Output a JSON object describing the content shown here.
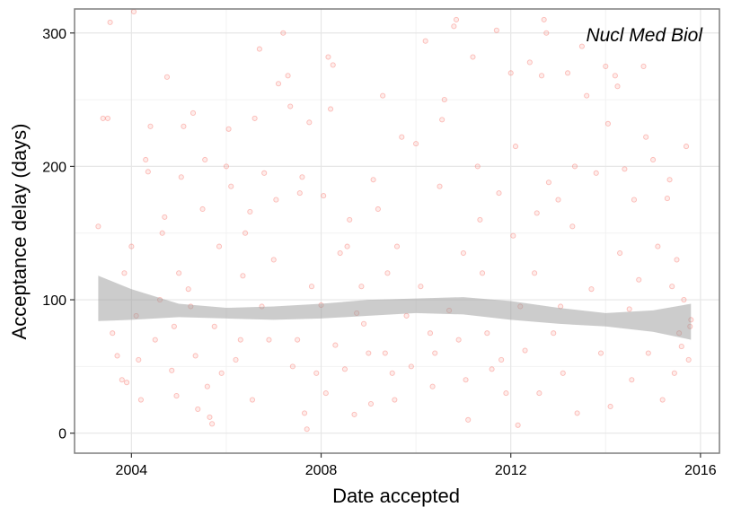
{
  "chart_data": {
    "type": "scatter",
    "title": "",
    "xlabel": "Date accepted",
    "ylabel": "Acceptance delay (days)",
    "annotation": "Nucl Med Biol",
    "xlim": [
      2002.8,
      2016.4
    ],
    "ylim": [
      -15,
      318
    ],
    "x_ticks": [
      2004,
      2008,
      2012,
      2016
    ],
    "x_tick_labels": [
      "2004",
      "2008",
      "2012",
      "2016"
    ],
    "y_ticks": [
      0,
      100,
      200,
      300
    ],
    "y_tick_labels": [
      "0",
      "100",
      "200",
      "300"
    ],
    "x_minor_gridlines": [
      2002,
      2006,
      2010,
      2014
    ],
    "y_minor_gridlines": [
      50,
      150,
      250
    ],
    "grid": true,
    "point_color": "#f8766d",
    "point_opacity": 0.25,
    "band_color": "#999999",
    "points": [
      [
        2003.3,
        155
      ],
      [
        2003.4,
        236
      ],
      [
        2003.5,
        236
      ],
      [
        2003.55,
        308
      ],
      [
        2003.6,
        75
      ],
      [
        2003.7,
        58
      ],
      [
        2003.8,
        40
      ],
      [
        2003.85,
        120
      ],
      [
        2003.9,
        38
      ],
      [
        2004.0,
        140
      ],
      [
        2004.05,
        316
      ],
      [
        2004.1,
        88
      ],
      [
        2004.15,
        55
      ],
      [
        2004.2,
        25
      ],
      [
        2004.3,
        205
      ],
      [
        2004.35,
        196
      ],
      [
        2004.4,
        230
      ],
      [
        2004.5,
        70
      ],
      [
        2004.6,
        100
      ],
      [
        2004.65,
        150
      ],
      [
        2004.7,
        162
      ],
      [
        2004.75,
        267
      ],
      [
        2004.85,
        47
      ],
      [
        2004.9,
        80
      ],
      [
        2004.95,
        28
      ],
      [
        2005.0,
        120
      ],
      [
        2005.05,
        192
      ],
      [
        2005.1,
        230
      ],
      [
        2005.2,
        108
      ],
      [
        2005.25,
        95
      ],
      [
        2005.3,
        240
      ],
      [
        2005.35,
        58
      ],
      [
        2005.4,
        18
      ],
      [
        2005.5,
        168
      ],
      [
        2005.55,
        205
      ],
      [
        2005.6,
        35
      ],
      [
        2005.65,
        12
      ],
      [
        2005.7,
        7
      ],
      [
        2005.75,
        80
      ],
      [
        2005.85,
        140
      ],
      [
        2005.9,
        45
      ],
      [
        2006.0,
        200
      ],
      [
        2006.05,
        228
      ],
      [
        2006.1,
        185
      ],
      [
        2006.2,
        55
      ],
      [
        2006.3,
        70
      ],
      [
        2006.35,
        118
      ],
      [
        2006.4,
        150
      ],
      [
        2006.5,
        166
      ],
      [
        2006.55,
        25
      ],
      [
        2006.6,
        236
      ],
      [
        2006.7,
        288
      ],
      [
        2006.75,
        95
      ],
      [
        2006.8,
        195
      ],
      [
        2006.9,
        70
      ],
      [
        2007.0,
        130
      ],
      [
        2007.05,
        175
      ],
      [
        2007.1,
        262
      ],
      [
        2007.2,
        300
      ],
      [
        2007.3,
        268
      ],
      [
        2007.35,
        245
      ],
      [
        2007.4,
        50
      ],
      [
        2007.5,
        70
      ],
      [
        2007.55,
        180
      ],
      [
        2007.6,
        192
      ],
      [
        2007.65,
        15
      ],
      [
        2007.7,
        3
      ],
      [
        2007.75,
        233
      ],
      [
        2007.8,
        110
      ],
      [
        2007.9,
        45
      ],
      [
        2008.0,
        96
      ],
      [
        2008.05,
        178
      ],
      [
        2008.1,
        30
      ],
      [
        2008.15,
        282
      ],
      [
        2008.2,
        243
      ],
      [
        2008.25,
        276
      ],
      [
        2008.3,
        66
      ],
      [
        2008.4,
        135
      ],
      [
        2008.5,
        48
      ],
      [
        2008.55,
        140
      ],
      [
        2008.6,
        160
      ],
      [
        2008.7,
        14
      ],
      [
        2008.75,
        90
      ],
      [
        2008.85,
        110
      ],
      [
        2008.9,
        82
      ],
      [
        2009.0,
        60
      ],
      [
        2009.05,
        22
      ],
      [
        2009.1,
        190
      ],
      [
        2009.2,
        168
      ],
      [
        2009.3,
        253
      ],
      [
        2009.35,
        60
      ],
      [
        2009.4,
        120
      ],
      [
        2009.5,
        45
      ],
      [
        2009.55,
        25
      ],
      [
        2009.6,
        140
      ],
      [
        2009.7,
        222
      ],
      [
        2009.8,
        88
      ],
      [
        2009.9,
        50
      ],
      [
        2010.0,
        217
      ],
      [
        2010.1,
        110
      ],
      [
        2010.2,
        294
      ],
      [
        2010.3,
        75
      ],
      [
        2010.35,
        35
      ],
      [
        2010.4,
        60
      ],
      [
        2010.5,
        185
      ],
      [
        2010.55,
        235
      ],
      [
        2010.6,
        250
      ],
      [
        2010.7,
        92
      ],
      [
        2010.8,
        305
      ],
      [
        2010.85,
        310
      ],
      [
        2010.9,
        70
      ],
      [
        2011.0,
        135
      ],
      [
        2011.05,
        40
      ],
      [
        2011.1,
        10
      ],
      [
        2011.2,
        282
      ],
      [
        2011.3,
        200
      ],
      [
        2011.35,
        160
      ],
      [
        2011.4,
        120
      ],
      [
        2011.5,
        75
      ],
      [
        2011.6,
        48
      ],
      [
        2011.7,
        302
      ],
      [
        2011.75,
        180
      ],
      [
        2011.8,
        55
      ],
      [
        2011.9,
        30
      ],
      [
        2012.0,
        270
      ],
      [
        2012.05,
        148
      ],
      [
        2012.1,
        215
      ],
      [
        2012.15,
        6
      ],
      [
        2012.2,
        95
      ],
      [
        2012.3,
        62
      ],
      [
        2012.4,
        278
      ],
      [
        2012.5,
        120
      ],
      [
        2012.55,
        165
      ],
      [
        2012.6,
        30
      ],
      [
        2012.65,
        268
      ],
      [
        2012.7,
        310
      ],
      [
        2012.75,
        300
      ],
      [
        2012.8,
        188
      ],
      [
        2012.9,
        75
      ],
      [
        2013.0,
        175
      ],
      [
        2013.05,
        95
      ],
      [
        2013.1,
        45
      ],
      [
        2013.2,
        270
      ],
      [
        2013.3,
        155
      ],
      [
        2013.35,
        200
      ],
      [
        2013.4,
        15
      ],
      [
        2013.5,
        290
      ],
      [
        2013.6,
        253
      ],
      [
        2013.7,
        108
      ],
      [
        2013.8,
        195
      ],
      [
        2013.9,
        60
      ],
      [
        2014.0,
        275
      ],
      [
        2014.05,
        232
      ],
      [
        2014.1,
        20
      ],
      [
        2014.2,
        268
      ],
      [
        2014.25,
        260
      ],
      [
        2014.3,
        135
      ],
      [
        2014.4,
        198
      ],
      [
        2014.5,
        93
      ],
      [
        2014.55,
        40
      ],
      [
        2014.6,
        175
      ],
      [
        2014.7,
        115
      ],
      [
        2014.8,
        275
      ],
      [
        2014.85,
        222
      ],
      [
        2014.9,
        60
      ],
      [
        2015.0,
        205
      ],
      [
        2015.1,
        140
      ],
      [
        2015.2,
        25
      ],
      [
        2015.3,
        176
      ],
      [
        2015.35,
        190
      ],
      [
        2015.4,
        110
      ],
      [
        2015.45,
        45
      ],
      [
        2015.5,
        130
      ],
      [
        2015.55,
        75
      ],
      [
        2015.6,
        65
      ],
      [
        2015.65,
        100
      ],
      [
        2015.7,
        215
      ],
      [
        2015.75,
        55
      ],
      [
        2015.78,
        80
      ],
      [
        2015.8,
        85
      ]
    ],
    "ribbon": {
      "x": [
        2003.3,
        2004.0,
        2005.0,
        2006.0,
        2007.0,
        2008.0,
        2009.0,
        2010.0,
        2011.0,
        2012.0,
        2013.0,
        2014.0,
        2015.0,
        2015.8
      ],
      "upper": [
        118,
        108,
        97,
        94,
        95,
        97,
        100,
        101,
        102,
        99,
        94,
        90,
        92,
        97
      ],
      "lower": [
        84,
        85,
        87,
        86,
        85,
        86,
        88,
        90,
        89,
        85,
        82,
        80,
        76,
        70
      ]
    }
  }
}
